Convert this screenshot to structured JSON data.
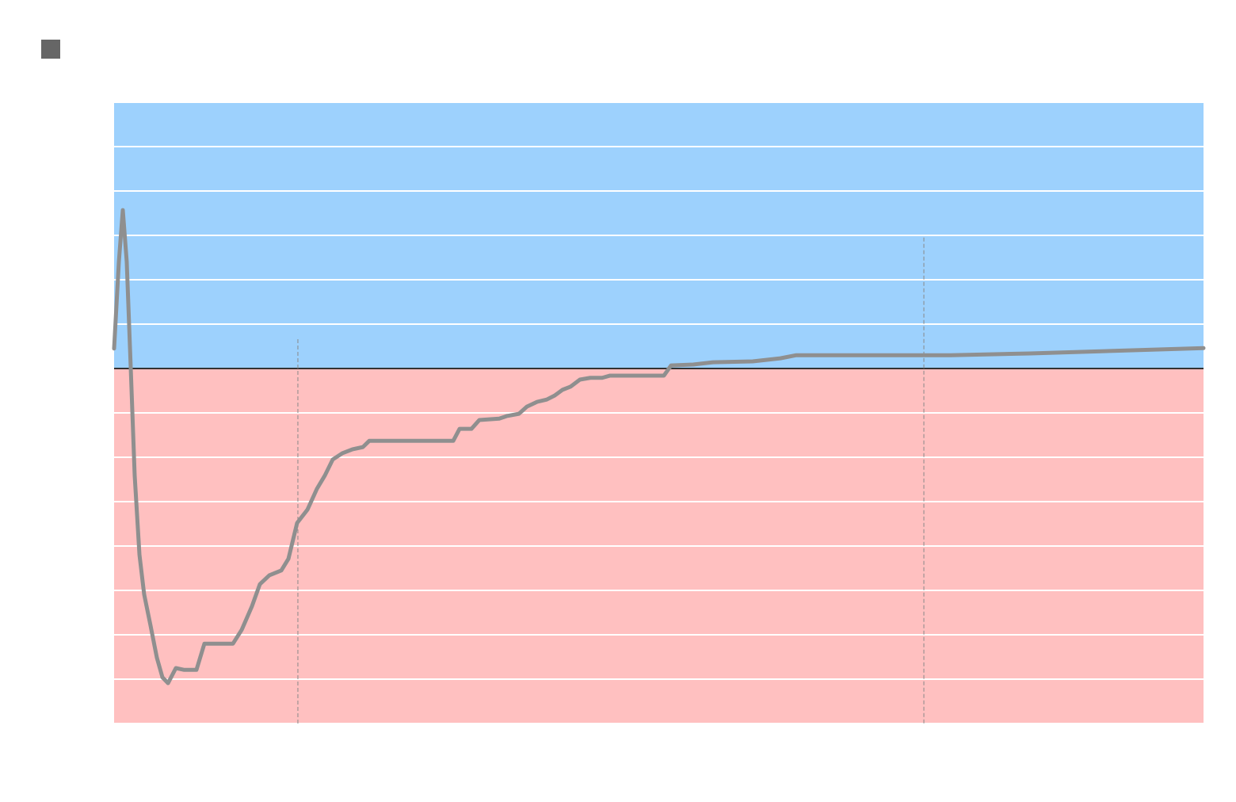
{
  "chart_data": {
    "type": "line",
    "legend": "top-left",
    "legend_color": "#666666",
    "positive_color": "#9dd1fd",
    "negative_color": "#ffc0c0",
    "grid": true,
    "grid_color": "#ffffff",
    "zero_line_color": "#333333",
    "xlim": [
      0,
      100
    ],
    "ylim": [
      -8,
      6
    ],
    "yticks": [
      -8,
      -7,
      -6,
      -5,
      -4,
      -3,
      -2,
      -1,
      0,
      1,
      2,
      3,
      4,
      5,
      6
    ],
    "vlines": [
      {
        "x": 16.87,
        "top": 0.66
      },
      {
        "x": 74.33,
        "top": 2.95
      }
    ],
    "x": [
      0,
      0.44,
      0.8,
      1.16,
      1.53,
      1.89,
      2.33,
      2.76,
      3.35,
      3.93,
      4.44,
      4.95,
      5.67,
      6.4,
      7.56,
      8.29,
      10.91,
      11.71,
      12.65,
      13.38,
      14.25,
      15.35,
      16,
      16.8,
      17.75,
      18.62,
      19.35,
      20.07,
      20.95,
      21.89,
      22.84,
      23.42,
      31.13,
      31.71,
      32.8,
      33.53,
      35.35,
      36.07,
      37.16,
      37.89,
      38.84,
      39.71,
      40.44,
      41.16,
      41.89,
      42.76,
      43.71,
      44.8,
      45.53,
      50.47,
      51.13,
      53.16,
      54.98,
      58.62,
      61.16,
      62.62,
      76.8,
      84.07,
      100
    ],
    "series": [
      {
        "color": "#8f8f8f",
        "values": [
          0.45,
          2.41,
          3.57,
          2.41,
          0,
          -2.41,
          -4.2,
          -5.09,
          -5.8,
          -6.52,
          -6.96,
          -7.09,
          -6.75,
          -6.79,
          -6.79,
          -6.2,
          -6.2,
          -5.89,
          -5.36,
          -4.86,
          -4.66,
          -4.55,
          -4.29,
          -3.48,
          -3.18,
          -2.71,
          -2.41,
          -2.05,
          -1.91,
          -1.82,
          -1.77,
          -1.63,
          -1.63,
          -1.36,
          -1.36,
          -1.16,
          -1.13,
          -1.07,
          -1.02,
          -0.86,
          -0.75,
          -0.7,
          -0.61,
          -0.48,
          -0.41,
          -0.25,
          -0.21,
          -0.21,
          -0.16,
          -0.16,
          0.07,
          0.09,
          0.14,
          0.16,
          0.23,
          0.3,
          0.3,
          0.34,
          0.46
        ]
      }
    ]
  }
}
